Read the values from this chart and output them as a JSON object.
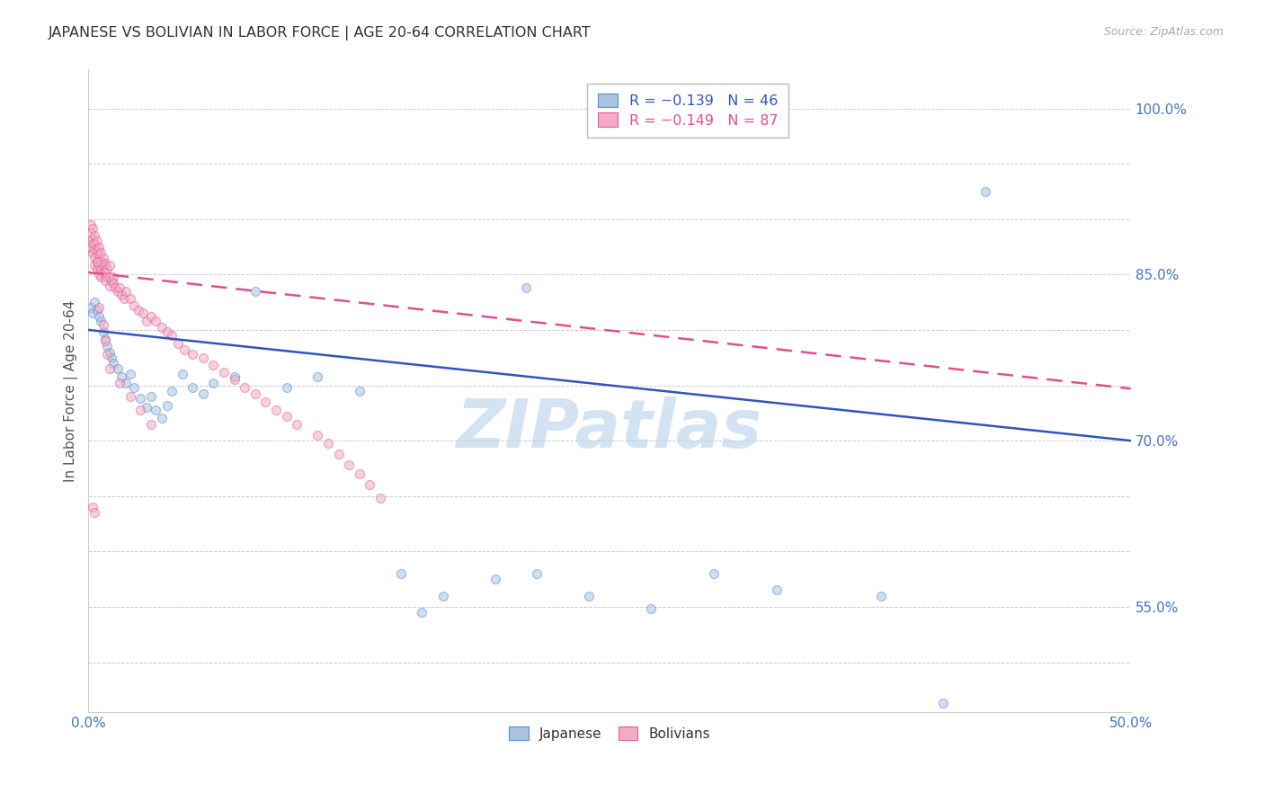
{
  "title": "JAPANESE VS BOLIVIAN IN LABOR FORCE | AGE 20-64 CORRELATION CHART",
  "source": "Source: ZipAtlas.com",
  "ylabel": "In Labor Force | Age 20-64",
  "xlim": [
    0.0,
    0.5
  ],
  "ylim": [
    0.455,
    1.035
  ],
  "blue_color": "#aac4e0",
  "blue_edge": "#5b8dd9",
  "pink_color": "#f5aac8",
  "pink_edge": "#e06090",
  "line_blue": "#3355bb",
  "line_pink": "#e05090",
  "grid_color": "#cccccc",
  "axis_color": "#4472c4",
  "title_color": "#333333",
  "source_color": "#aaaaaa",
  "watermark": "ZIPatlas",
  "marker_size": 52,
  "marker_alpha": 0.55,
  "line_width": 1.8,
  "legend_r1": "R = −0.139",
  "legend_n1": "N = 46",
  "legend_r2": "R = −0.149",
  "legend_n2": "N = 87",
  "jp_line_y0": 0.8,
  "jp_line_y1": 0.7,
  "bo_line_y0": 0.852,
  "bo_line_y1": 0.747,
  "jp_x": [
    0.001,
    0.002,
    0.003,
    0.004,
    0.005,
    0.006,
    0.007,
    0.008,
    0.009,
    0.01,
    0.011,
    0.012,
    0.014,
    0.016,
    0.018,
    0.02,
    0.022,
    0.025,
    0.028,
    0.03,
    0.032,
    0.035,
    0.038,
    0.04,
    0.045,
    0.05,
    0.055,
    0.06,
    0.07,
    0.08,
    0.095,
    0.11,
    0.13,
    0.15,
    0.17,
    0.195,
    0.215,
    0.24,
    0.27,
    0.3,
    0.33,
    0.38,
    0.41,
    0.43,
    0.21,
    0.16
  ],
  "jp_y": [
    0.82,
    0.815,
    0.825,
    0.818,
    0.812,
    0.808,
    0.798,
    0.792,
    0.785,
    0.78,
    0.775,
    0.77,
    0.765,
    0.758,
    0.752,
    0.76,
    0.748,
    0.738,
    0.73,
    0.74,
    0.728,
    0.72,
    0.732,
    0.745,
    0.76,
    0.748,
    0.742,
    0.752,
    0.758,
    0.835,
    0.748,
    0.758,
    0.745,
    0.58,
    0.56,
    0.575,
    0.58,
    0.56,
    0.548,
    0.58,
    0.565,
    0.56,
    0.463,
    0.925,
    0.838,
    0.545
  ],
  "bo_x": [
    0.001,
    0.001,
    0.001,
    0.002,
    0.002,
    0.002,
    0.002,
    0.003,
    0.003,
    0.003,
    0.003,
    0.003,
    0.004,
    0.004,
    0.004,
    0.004,
    0.005,
    0.005,
    0.005,
    0.005,
    0.005,
    0.006,
    0.006,
    0.006,
    0.006,
    0.007,
    0.007,
    0.007,
    0.008,
    0.008,
    0.008,
    0.009,
    0.009,
    0.01,
    0.01,
    0.01,
    0.011,
    0.012,
    0.012,
    0.013,
    0.014,
    0.015,
    0.016,
    0.017,
    0.018,
    0.02,
    0.022,
    0.024,
    0.026,
    0.028,
    0.03,
    0.032,
    0.035,
    0.038,
    0.04,
    0.043,
    0.046,
    0.05,
    0.055,
    0.06,
    0.065,
    0.07,
    0.075,
    0.08,
    0.085,
    0.09,
    0.095,
    0.1,
    0.11,
    0.115,
    0.12,
    0.125,
    0.13,
    0.135,
    0.14,
    0.002,
    0.003,
    0.004,
    0.005,
    0.007,
    0.008,
    0.009,
    0.01,
    0.015,
    0.02,
    0.025,
    0.03
  ],
  "bo_y": [
    0.888,
    0.895,
    0.875,
    0.882,
    0.878,
    0.892,
    0.87,
    0.885,
    0.878,
    0.872,
    0.865,
    0.858,
    0.88,
    0.872,
    0.862,
    0.855,
    0.875,
    0.868,
    0.862,
    0.858,
    0.85,
    0.87,
    0.862,
    0.855,
    0.848,
    0.865,
    0.858,
    0.852,
    0.86,
    0.852,
    0.845,
    0.855,
    0.848,
    0.858,
    0.848,
    0.84,
    0.845,
    0.848,
    0.842,
    0.838,
    0.835,
    0.838,
    0.832,
    0.828,
    0.835,
    0.828,
    0.822,
    0.818,
    0.815,
    0.808,
    0.812,
    0.808,
    0.802,
    0.798,
    0.795,
    0.788,
    0.782,
    0.778,
    0.775,
    0.768,
    0.762,
    0.755,
    0.748,
    0.742,
    0.735,
    0.728,
    0.722,
    0.715,
    0.705,
    0.698,
    0.688,
    0.678,
    0.67,
    0.66,
    0.648,
    0.64,
    0.635,
    0.862,
    0.82,
    0.805,
    0.79,
    0.778,
    0.765,
    0.752,
    0.74,
    0.728,
    0.715
  ],
  "ytick_pos": [
    0.5,
    0.55,
    0.6,
    0.65,
    0.7,
    0.75,
    0.8,
    0.85,
    0.9,
    0.95,
    1.0
  ],
  "ytick_lbl": [
    "",
    "55.0%",
    "",
    "",
    "70.0%",
    "",
    "",
    "85.0%",
    "",
    "",
    "100.0%"
  ],
  "xtick_pos": [
    0.0,
    0.05,
    0.1,
    0.15,
    0.2,
    0.25,
    0.3,
    0.35,
    0.4,
    0.45,
    0.5
  ],
  "xtick_lbl": [
    "0.0%",
    "",
    "",
    "",
    "",
    "",
    "",
    "",
    "",
    "",
    "50.0%"
  ]
}
